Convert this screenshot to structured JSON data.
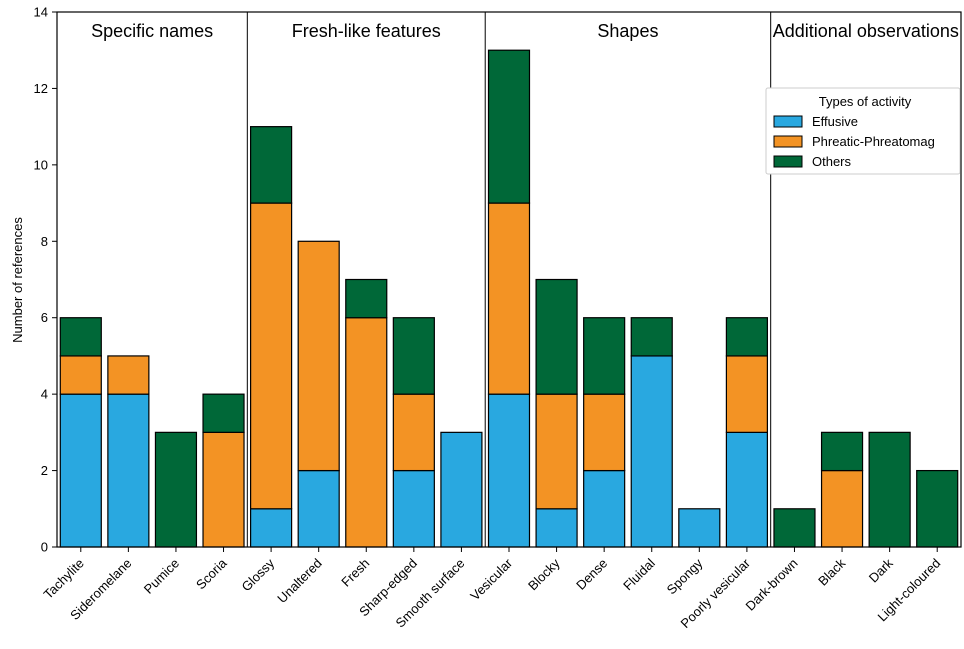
{
  "chart_data": {
    "type": "bar",
    "stacked": true,
    "ylabel": "Number of references",
    "ylim": [
      0,
      14
    ],
    "yticks": [
      0,
      2,
      4,
      6,
      8,
      10,
      12,
      14
    ],
    "grid": false,
    "legend": {
      "title": "Types of activity",
      "placement": "right, below the Additional observations heading"
    },
    "categories": [
      "Tachylite",
      "Sideromelane",
      "Pumice",
      "Scoria",
      "Glossy",
      "Unaltered",
      "Fresh",
      "Sharp-edged",
      "Smooth surface",
      "Vesicular",
      "Blocky",
      "Dense",
      "Fluidal",
      "Spongy",
      "Poorly vesicular",
      "Dark-brown",
      "Black",
      "Dark",
      "Light-coloured"
    ],
    "series": [
      {
        "name": "Effusive",
        "color": "#29a8e0",
        "values": [
          4,
          4,
          0,
          0,
          1,
          2,
          0,
          2,
          3,
          4,
          1,
          2,
          5,
          1,
          3,
          0,
          0,
          0,
          0
        ]
      },
      {
        "name": "Phreatic-Phreatomag",
        "color": "#f39324",
        "values": [
          1,
          1,
          0,
          3,
          8,
          6,
          6,
          2,
          0,
          5,
          3,
          2,
          0,
          0,
          2,
          0,
          2,
          0,
          0
        ]
      },
      {
        "name": "Others",
        "color": "#006838",
        "values": [
          1,
          0,
          3,
          1,
          2,
          0,
          1,
          2,
          0,
          4,
          3,
          2,
          1,
          0,
          1,
          1,
          1,
          3,
          2
        ]
      }
    ],
    "groups": [
      {
        "title": "Specific names",
        "start": 0,
        "end": 3
      },
      {
        "title": "Fresh-like features",
        "start": 4,
        "end": 8
      },
      {
        "title": "Shapes",
        "start": 9,
        "end": 14
      },
      {
        "title": "Additional observations",
        "start": 15,
        "end": 18
      }
    ]
  }
}
